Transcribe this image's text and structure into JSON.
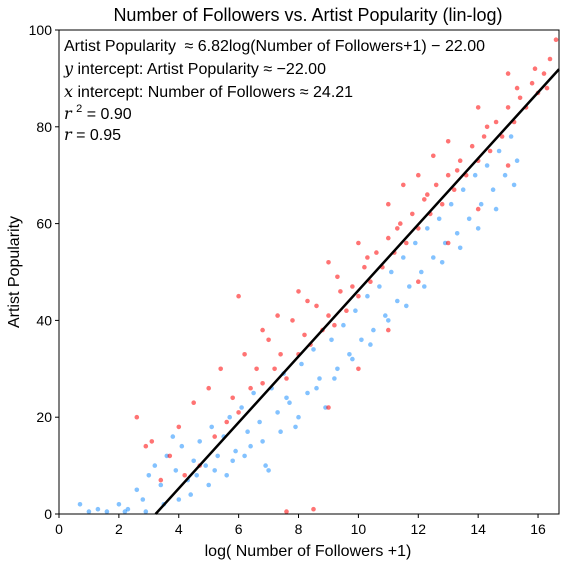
{
  "chart_data": {
    "type": "scatter",
    "title": "Number of Followers vs. Artist Popularity (lin-log)",
    "xlabel": "log( Number of Followers +1)",
    "ylabel": "Artist Popularity",
    "xlim": [
      0,
      16.7
    ],
    "ylim": [
      0,
      100
    ],
    "x_ticks": [
      0,
      2,
      4,
      6,
      8,
      10,
      12,
      14,
      16
    ],
    "y_ticks": [
      0,
      20,
      40,
      60,
      80,
      100
    ],
    "grid": false,
    "colors": {
      "primary": "#ff0000",
      "secondary": "#1e90ff",
      "fit_line": "#000000"
    },
    "fit": {
      "slope": 6.82,
      "intercept": -22.0
    },
    "annotations": {
      "equation_prefix": "Artist Popularity",
      "equation_rhs": "≈ 6.82log(Number of Followers+1) − 22.00",
      "y_intercept_var": "y",
      "y_intercept_text": " intercept: Artist Popularity ≈ −22.00",
      "x_intercept_var": "x",
      "x_intercept_text": " intercept: Number of Followers ≈ 24.21",
      "r2_var": "r",
      "r2_sup": "2",
      "r2_value": " = 0.90",
      "r_var": "r",
      "r_value": " = 0.95"
    },
    "series": [
      {
        "color": "#1e90ff",
        "points": [
          [
            0.7,
            2
          ],
          [
            1.0,
            0.5
          ],
          [
            1.3,
            1
          ],
          [
            1.6,
            0.5
          ],
          [
            2.0,
            2
          ],
          [
            2.3,
            1
          ],
          [
            2.6,
            5
          ],
          [
            2.8,
            3
          ],
          [
            3.0,
            8
          ],
          [
            3.2,
            10
          ],
          [
            3.4,
            6
          ],
          [
            3.6,
            12
          ],
          [
            3.9,
            9
          ],
          [
            4.1,
            14
          ],
          [
            4.3,
            7
          ],
          [
            4.5,
            11
          ],
          [
            4.7,
            15
          ],
          [
            4.9,
            10
          ],
          [
            5.1,
            18
          ],
          [
            5.3,
            12
          ],
          [
            5.5,
            16
          ],
          [
            5.7,
            20
          ],
          [
            5.9,
            13
          ],
          [
            6.1,
            22
          ],
          [
            6.3,
            17
          ],
          [
            6.5,
            25
          ],
          [
            6.7,
            19
          ],
          [
            6.9,
            10
          ],
          [
            7.1,
            26
          ],
          [
            7.3,
            21
          ],
          [
            7.5,
            29
          ],
          [
            7.7,
            23
          ],
          [
            7.9,
            18
          ],
          [
            8.1,
            31
          ],
          [
            8.3,
            25
          ],
          [
            8.5,
            34
          ],
          [
            8.7,
            28
          ],
          [
            8.9,
            22
          ],
          [
            9.1,
            36
          ],
          [
            9.3,
            30
          ],
          [
            9.5,
            39
          ],
          [
            9.7,
            33
          ],
          [
            9.9,
            42
          ],
          [
            10.1,
            36
          ],
          [
            10.3,
            45
          ],
          [
            10.5,
            38
          ],
          [
            10.7,
            47
          ],
          [
            10.9,
            41
          ],
          [
            11.1,
            50
          ],
          [
            11.3,
            44
          ],
          [
            11.5,
            53
          ],
          [
            11.7,
            47
          ],
          [
            11.9,
            56
          ],
          [
            12.1,
            50
          ],
          [
            12.3,
            59
          ],
          [
            12.5,
            53
          ],
          [
            12.7,
            61
          ],
          [
            12.9,
            56
          ],
          [
            13.1,
            64
          ],
          [
            13.3,
            58
          ],
          [
            13.5,
            67
          ],
          [
            13.7,
            61
          ],
          [
            13.9,
            70
          ],
          [
            14.1,
            64
          ],
          [
            14.3,
            72
          ],
          [
            14.5,
            67
          ],
          [
            14.7,
            75
          ],
          [
            14.9,
            70
          ],
          [
            15.1,
            78
          ],
          [
            15.3,
            73
          ],
          [
            3.8,
            16
          ],
          [
            4.4,
            4
          ],
          [
            5.0,
            6
          ],
          [
            5.6,
            8
          ],
          [
            6.2,
            12
          ],
          [
            6.8,
            15
          ],
          [
            7.4,
            17
          ],
          [
            8.0,
            20
          ],
          [
            8.6,
            26
          ],
          [
            9.2,
            28
          ],
          [
            9.8,
            32
          ],
          [
            10.4,
            35
          ],
          [
            11.0,
            40
          ],
          [
            11.6,
            43
          ],
          [
            12.2,
            47
          ],
          [
            12.8,
            52
          ],
          [
            13.4,
            55
          ],
          [
            14.0,
            59
          ],
          [
            14.6,
            63
          ],
          [
            15.2,
            68
          ],
          [
            2.2,
            0.5
          ],
          [
            2.9,
            0.5
          ],
          [
            3.5,
            2
          ],
          [
            4.0,
            3
          ],
          [
            4.6,
            8
          ],
          [
            5.2,
            9
          ],
          [
            5.8,
            11
          ],
          [
            6.4,
            14
          ],
          [
            7.0,
            9
          ],
          [
            7.6,
            24
          ]
        ]
      },
      {
        "color": "#ff0000",
        "points": [
          [
            2.6,
            20
          ],
          [
            2.9,
            14
          ],
          [
            3.1,
            15
          ],
          [
            3.4,
            7
          ],
          [
            3.7,
            12
          ],
          [
            4.0,
            18
          ],
          [
            4.2,
            8
          ],
          [
            4.5,
            23
          ],
          [
            4.7,
            10
          ],
          [
            5.0,
            26
          ],
          [
            5.2,
            16
          ],
          [
            5.4,
            30
          ],
          [
            5.6,
            19
          ],
          [
            5.8,
            24
          ],
          [
            6.0,
            21
          ],
          [
            6.2,
            33
          ],
          [
            6.4,
            26
          ],
          [
            6.6,
            30
          ],
          [
            6.8,
            27
          ],
          [
            7.0,
            36
          ],
          [
            7.2,
            30
          ],
          [
            7.4,
            33
          ],
          [
            7.6,
            28
          ],
          [
            7.8,
            40
          ],
          [
            8.0,
            33
          ],
          [
            8.2,
            37
          ],
          [
            8.4,
            35
          ],
          [
            8.6,
            43
          ],
          [
            8.8,
            38
          ],
          [
            9.0,
            41
          ],
          [
            9.2,
            39
          ],
          [
            9.4,
            46
          ],
          [
            9.6,
            42
          ],
          [
            9.8,
            47
          ],
          [
            10.0,
            45
          ],
          [
            10.2,
            51
          ],
          [
            10.4,
            48
          ],
          [
            10.6,
            54
          ],
          [
            10.8,
            51
          ],
          [
            11.0,
            57
          ],
          [
            11.2,
            54
          ],
          [
            11.4,
            60
          ],
          [
            11.6,
            56
          ],
          [
            11.8,
            62
          ],
          [
            12.0,
            59
          ],
          [
            12.2,
            65
          ],
          [
            12.4,
            62
          ],
          [
            12.6,
            68
          ],
          [
            12.8,
            64
          ],
          [
            13.0,
            70
          ],
          [
            13.2,
            67
          ],
          [
            13.4,
            73
          ],
          [
            13.6,
            70
          ],
          [
            13.8,
            76
          ],
          [
            14.0,
            73
          ],
          [
            14.2,
            78
          ],
          [
            14.4,
            75
          ],
          [
            14.6,
            81
          ],
          [
            14.8,
            78
          ],
          [
            15.0,
            84
          ],
          [
            15.2,
            81
          ],
          [
            15.4,
            86
          ],
          [
            15.6,
            84
          ],
          [
            15.8,
            89
          ],
          [
            16.0,
            87
          ],
          [
            16.2,
            91
          ],
          [
            16.4,
            94
          ],
          [
            16.6,
            98
          ],
          [
            16.3,
            88
          ],
          [
            15.9,
            92
          ],
          [
            6.0,
            45
          ],
          [
            7.6,
            0.5
          ],
          [
            8.5,
            1
          ],
          [
            9.0,
            22
          ],
          [
            10.0,
            30
          ],
          [
            11.0,
            38
          ],
          [
            12.0,
            48
          ],
          [
            13.0,
            56
          ],
          [
            14.0,
            63
          ],
          [
            15.0,
            72
          ],
          [
            8.0,
            46
          ],
          [
            9.0,
            52
          ],
          [
            10.0,
            56
          ],
          [
            11.0,
            64
          ],
          [
            12.0,
            70
          ],
          [
            13.0,
            77
          ],
          [
            14.0,
            84
          ],
          [
            15.0,
            91
          ],
          [
            11.5,
            68
          ],
          [
            12.5,
            74
          ],
          [
            6.8,
            38
          ],
          [
            7.3,
            41
          ],
          [
            8.3,
            44
          ],
          [
            9.3,
            49
          ],
          [
            10.3,
            53
          ],
          [
            11.3,
            59
          ],
          [
            12.3,
            66
          ],
          [
            13.3,
            71
          ],
          [
            14.3,
            80
          ],
          [
            15.3,
            88
          ]
        ]
      }
    ]
  }
}
